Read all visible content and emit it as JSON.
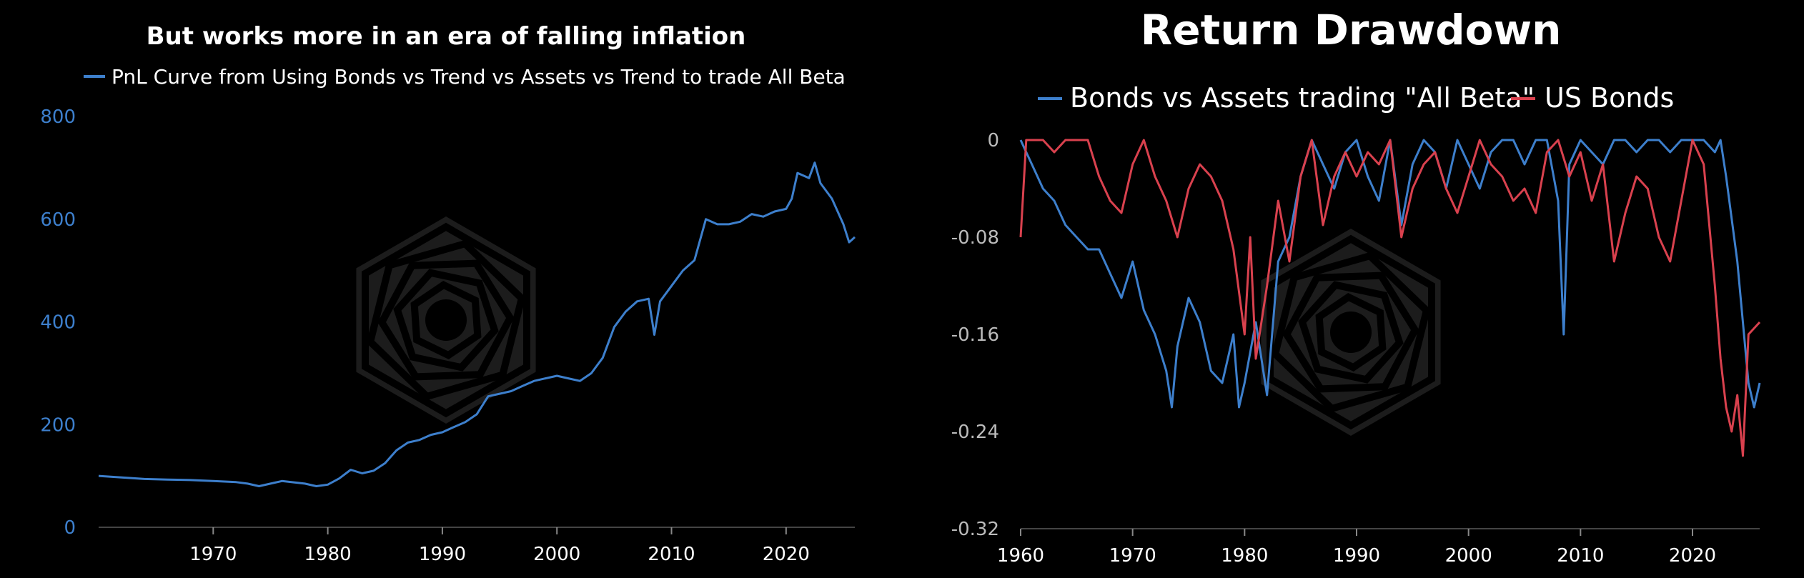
{
  "colors": {
    "background": "#000000",
    "blue": "#3d7fcc",
    "red": "#d9414e",
    "axis": "#444444",
    "text": "#ffffff",
    "tick_left": "#3d7fcc",
    "tick_right": "#bbbbbb",
    "watermark": "#1c1c1c"
  },
  "watermark_icon": "hexagon-spiral-logo-icon",
  "chart_data": [
    {
      "type": "line",
      "title": "But works more in an era of falling inflation",
      "xlabel": "",
      "ylabel": "",
      "xlim": [
        1960,
        2026
      ],
      "ylim": [
        0,
        800
      ],
      "x_ticks": [
        1970,
        1980,
        1990,
        2000,
        2010,
        2020
      ],
      "y_ticks": [
        0,
        200,
        400,
        600,
        800
      ],
      "grid": false,
      "legend": "top-left",
      "series": [
        {
          "name": "PnL Curve from Using Bonds vs Trend vs Assets vs Trend to trade All Beta",
          "color": "#3d7fcc",
          "x": [
            1960,
            1962,
            1964,
            1966,
            1968,
            1970,
            1972,
            1973,
            1974,
            1975,
            1976,
            1978,
            1979,
            1980,
            1981,
            1982,
            1983,
            1984,
            1985,
            1986,
            1987,
            1988,
            1989,
            1990,
            1991,
            1992,
            1993,
            1994,
            1995,
            1996,
            1997,
            1998,
            1999,
            2000,
            2001,
            2002,
            2003,
            2004,
            2005,
            2006,
            2007,
            2008,
            2008.5,
            2009,
            2010,
            2011,
            2012,
            2013,
            2014,
            2015,
            2016,
            2017,
            2018,
            2019,
            2020,
            2020.5,
            2021,
            2022,
            2022.5,
            2023,
            2024,
            2025,
            2025.5,
            2026
          ],
          "y": [
            100,
            97,
            94,
            93,
            92,
            90,
            88,
            85,
            80,
            85,
            90,
            85,
            80,
            83,
            95,
            112,
            105,
            110,
            125,
            150,
            165,
            170,
            180,
            185,
            195,
            205,
            220,
            255,
            260,
            265,
            275,
            285,
            290,
            295,
            290,
            285,
            300,
            330,
            390,
            420,
            440,
            445,
            375,
            440,
            470,
            500,
            520,
            600,
            590,
            590,
            595,
            610,
            605,
            615,
            620,
            640,
            690,
            680,
            710,
            670,
            640,
            590,
            555,
            565
          ]
        }
      ]
    },
    {
      "type": "line",
      "title": "Return Drawdown",
      "xlabel": "",
      "ylabel": "",
      "xlim": [
        1960,
        2026
      ],
      "ylim": [
        -0.32,
        0
      ],
      "x_ticks": [
        1960,
        1970,
        1980,
        1990,
        2000,
        2010,
        2020
      ],
      "y_ticks": [
        0,
        -0.08,
        -0.16,
        -0.24,
        -0.32
      ],
      "grid": false,
      "legend": "top-center",
      "series": [
        {
          "name": "Bonds vs Assets trading \"All Beta\"",
          "color": "#3d7fcc",
          "x": [
            1960,
            1960.5,
            1961,
            1962,
            1963,
            1964,
            1965,
            1966,
            1967,
            1968,
            1969,
            1970,
            1971,
            1972,
            1973,
            1973.5,
            1974,
            1975,
            1976,
            1977,
            1978,
            1979,
            1979.5,
            1980,
            1981,
            1982,
            1983,
            1984,
            1985,
            1986,
            1987,
            1988,
            1989,
            1990,
            1991,
            1992,
            1993,
            1994,
            1995,
            1996,
            1997,
            1998,
            1999,
            2000,
            2001,
            2002,
            2003,
            2004,
            2005,
            2006,
            2007,
            2008,
            2008.5,
            2009,
            2010,
            2011,
            2012,
            2013,
            2014,
            2015,
            2016,
            2017,
            2018,
            2019,
            2020,
            2021,
            2022,
            2022.5,
            2023,
            2024,
            2024.5,
            2025,
            2025.5,
            2026
          ],
          "y": [
            0,
            -0.01,
            -0.02,
            -0.04,
            -0.05,
            -0.07,
            -0.08,
            -0.09,
            -0.09,
            -0.11,
            -0.13,
            -0.1,
            -0.14,
            -0.16,
            -0.19,
            -0.22,
            -0.17,
            -0.13,
            -0.15,
            -0.19,
            -0.2,
            -0.16,
            -0.22,
            -0.2,
            -0.15,
            -0.21,
            -0.1,
            -0.08,
            -0.03,
            0,
            -0.02,
            -0.04,
            -0.01,
            0,
            -0.03,
            -0.05,
            0,
            -0.07,
            -0.02,
            0,
            -0.01,
            -0.04,
            0,
            -0.02,
            -0.04,
            -0.01,
            0,
            0,
            -0.02,
            0,
            0,
            -0.05,
            -0.16,
            -0.02,
            0,
            -0.01,
            -0.02,
            0,
            0,
            -0.01,
            0,
            0,
            -0.01,
            0,
            0,
            0,
            -0.01,
            0,
            -0.03,
            -0.1,
            -0.15,
            -0.2,
            -0.22,
            -0.2
          ]
        },
        {
          "name": "US Bonds",
          "color": "#d9414e",
          "x": [
            1960,
            1960.5,
            1961,
            1962,
            1963,
            1964,
            1965,
            1966,
            1967,
            1968,
            1969,
            1970,
            1971,
            1972,
            1973,
            1974,
            1975,
            1976,
            1977,
            1978,
            1979,
            1980,
            1980.5,
            1981,
            1982,
            1983,
            1984,
            1985,
            1986,
            1987,
            1988,
            1989,
            1990,
            1991,
            1992,
            1993,
            1994,
            1995,
            1996,
            1997,
            1998,
            1999,
            2000,
            2001,
            2002,
            2003,
            2004,
            2005,
            2006,
            2007,
            2008,
            2009,
            2010,
            2011,
            2012,
            2013,
            2014,
            2015,
            2016,
            2017,
            2018,
            2019,
            2020,
            2021,
            2022,
            2022.5,
            2023,
            2023.5,
            2024,
            2024.5,
            2025,
            2026
          ],
          "y": [
            -0.08,
            0,
            0,
            0,
            -0.01,
            0,
            0,
            0,
            -0.03,
            -0.05,
            -0.06,
            -0.02,
            0,
            -0.03,
            -0.05,
            -0.08,
            -0.04,
            -0.02,
            -0.03,
            -0.05,
            -0.09,
            -0.16,
            -0.08,
            -0.18,
            -0.12,
            -0.05,
            -0.1,
            -0.03,
            0,
            -0.07,
            -0.03,
            -0.01,
            -0.03,
            -0.01,
            -0.02,
            0,
            -0.08,
            -0.04,
            -0.02,
            -0.01,
            -0.04,
            -0.06,
            -0.03,
            0,
            -0.02,
            -0.03,
            -0.05,
            -0.04,
            -0.06,
            -0.01,
            0,
            -0.03,
            -0.01,
            -0.05,
            -0.02,
            -0.1,
            -0.06,
            -0.03,
            -0.04,
            -0.08,
            -0.1,
            -0.05,
            0,
            -0.02,
            -0.12,
            -0.18,
            -0.22,
            -0.24,
            -0.21,
            -0.26,
            -0.16,
            -0.15
          ]
        }
      ]
    }
  ]
}
